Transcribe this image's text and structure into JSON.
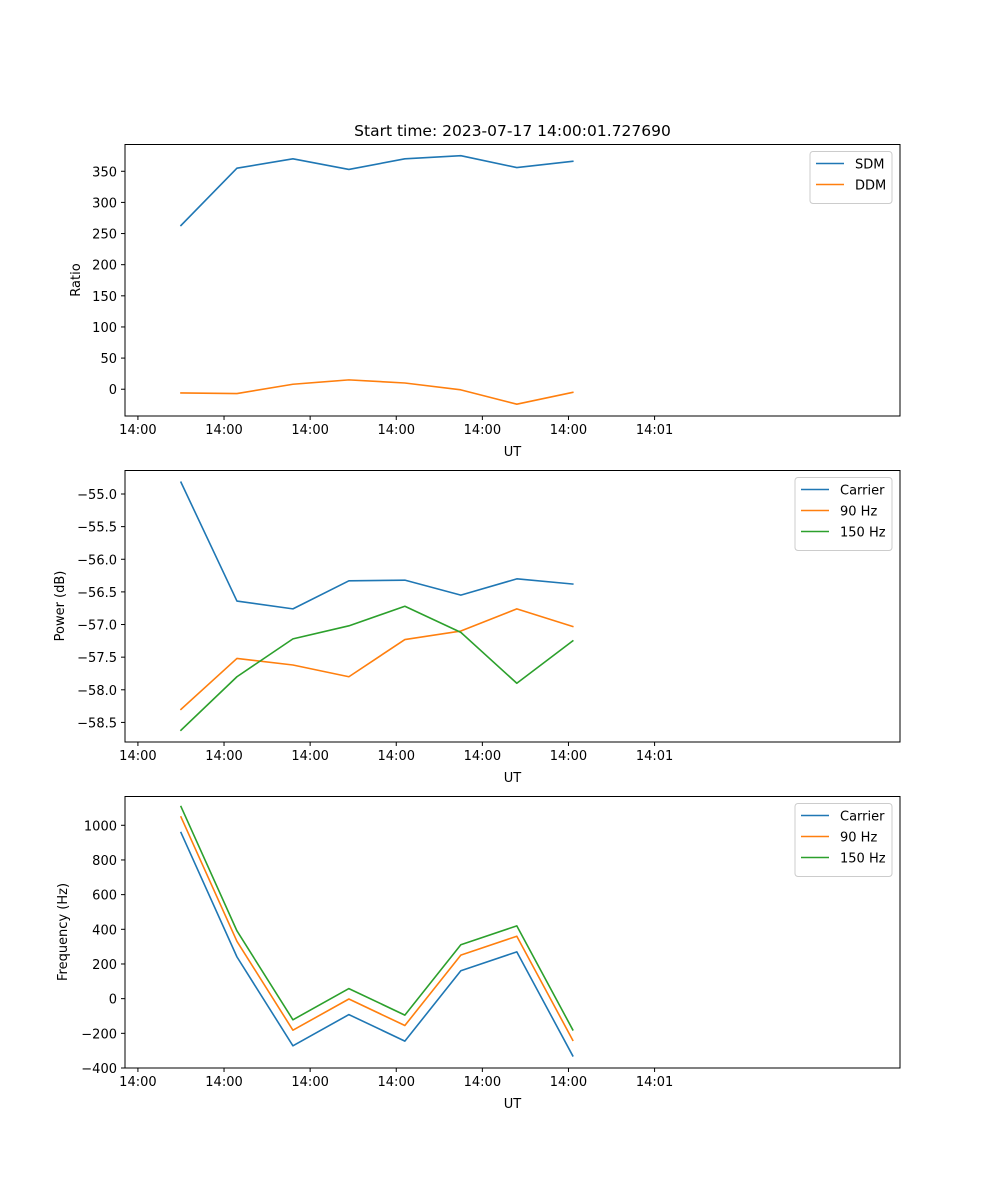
{
  "chart_data": [
    {
      "type": "line",
      "title": "Start time: 2023-07-17 14:00:01.727690",
      "xlabel": "UT",
      "ylabel": "Ratio",
      "xlim": [
        0,
        9
      ],
      "ylim": [
        -43,
        393
      ],
      "x_ticks": [
        0.15,
        1.15,
        2.15,
        3.15,
        4.15,
        5.15,
        6.15
      ],
      "x_tick_labels": [
        "14:00",
        "14:00",
        "14:00",
        "14:00",
        "14:00",
        "14:00",
        "14:01"
      ],
      "y_ticks": [
        0,
        50,
        100,
        150,
        200,
        250,
        300,
        350
      ],
      "y_tick_labels": [
        "0",
        "50",
        "100",
        "150",
        "200",
        "250",
        "300",
        "350"
      ],
      "x": [
        0.65,
        1.3,
        1.95,
        2.6,
        3.25,
        3.9,
        4.55,
        5.2
      ],
      "series": [
        {
          "name": "SDM",
          "color": "#1f77b4",
          "values": [
            263,
            355,
            370,
            353,
            370,
            375,
            356,
            366
          ]
        },
        {
          "name": "DDM",
          "color": "#ff7f0e",
          "values": [
            -6,
            -7,
            8,
            15,
            10,
            -1,
            -24,
            -5
          ]
        }
      ],
      "legend": "top-right"
    },
    {
      "type": "line",
      "title": "",
      "xlabel": "UT",
      "ylabel": "Power (dB)",
      "xlim": [
        0,
        9
      ],
      "ylim": [
        -58.8,
        -54.64
      ],
      "x_ticks": [
        0.15,
        1.15,
        2.15,
        3.15,
        4.15,
        5.15,
        6.15
      ],
      "x_tick_labels": [
        "14:00",
        "14:00",
        "14:00",
        "14:00",
        "14:00",
        "14:00",
        "14:01"
      ],
      "y_ticks": [
        -58.5,
        -58.0,
        -57.5,
        -57.0,
        -56.5,
        -56.0,
        -55.5,
        -55.0
      ],
      "y_tick_labels": [
        "−58.5",
        "−58.0",
        "−57.5",
        "−57.0",
        "−56.5",
        "−56.0",
        "−55.5",
        "−55.0"
      ],
      "x": [
        0.65,
        1.3,
        1.95,
        2.6,
        3.25,
        3.9,
        4.55,
        5.2
      ],
      "series": [
        {
          "name": "Carrier",
          "color": "#1f77b4",
          "values": [
            -54.82,
            -56.64,
            -56.76,
            -56.33,
            -56.32,
            -56.55,
            -56.3,
            -56.38
          ]
        },
        {
          "name": "90 Hz",
          "color": "#ff7f0e",
          "values": [
            -58.3,
            -57.52,
            -57.62,
            -57.8,
            -57.23,
            -57.1,
            -56.76,
            -57.03
          ]
        },
        {
          "name": "150 Hz",
          "color": "#2ca02c",
          "values": [
            -58.62,
            -57.8,
            -57.22,
            -57.02,
            -56.72,
            -57.12,
            -57.9,
            -57.25
          ]
        }
      ],
      "legend": "top-right"
    },
    {
      "type": "line",
      "title": "",
      "xlabel": "UT",
      "ylabel": "Frequency (Hz)",
      "xlim": [
        0,
        9
      ],
      "ylim": [
        -400,
        1166
      ],
      "x_ticks": [
        0.15,
        1.15,
        2.15,
        3.15,
        4.15,
        5.15,
        6.15
      ],
      "x_tick_labels": [
        "14:00",
        "14:00",
        "14:00",
        "14:00",
        "14:00",
        "14:00",
        "14:01"
      ],
      "y_ticks": [
        -400,
        -200,
        0,
        200,
        400,
        600,
        800,
        1000
      ],
      "y_tick_labels": [
        "−400",
        "−200",
        "0",
        "200",
        "400",
        "600",
        "800",
        "1000"
      ],
      "x": [
        0.65,
        1.3,
        1.95,
        2.6,
        3.25,
        3.9,
        4.55,
        5.2
      ],
      "series": [
        {
          "name": "Carrier",
          "color": "#1f77b4",
          "values": [
            958,
            241,
            -272,
            -92,
            -245,
            161,
            270,
            -330
          ]
        },
        {
          "name": "90 Hz",
          "color": "#ff7f0e",
          "values": [
            1048,
            331,
            -182,
            -2,
            -155,
            251,
            360,
            -240
          ]
        },
        {
          "name": "150 Hz",
          "color": "#2ca02c",
          "values": [
            1108,
            391,
            -122,
            58,
            -95,
            311,
            420,
            -180
          ]
        }
      ],
      "legend": "top-right"
    }
  ]
}
